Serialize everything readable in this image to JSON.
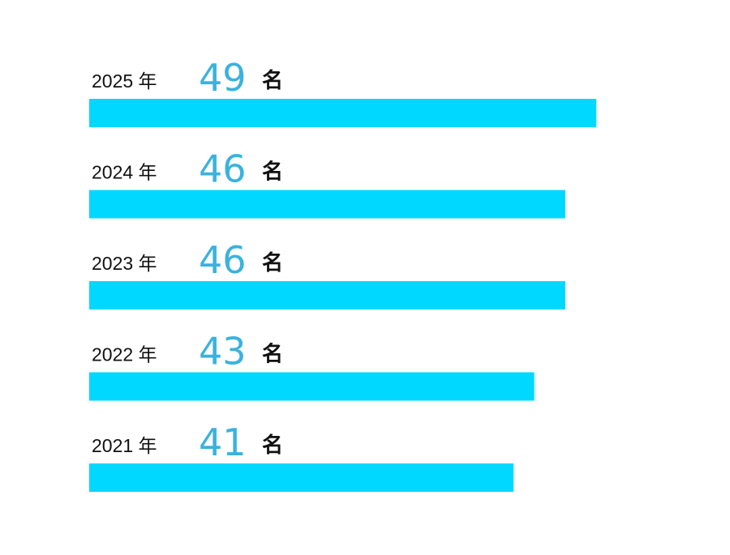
{
  "chart_data": {
    "type": "bar",
    "orientation": "horizontal",
    "categories": [
      "2025 年",
      "2024 年",
      "2023 年",
      "2022 年",
      "2021 年"
    ],
    "values": [
      49,
      46,
      46,
      43,
      41
    ],
    "unit": "名",
    "color": "#00d8ff",
    "value_color": "#3ab2de"
  }
}
